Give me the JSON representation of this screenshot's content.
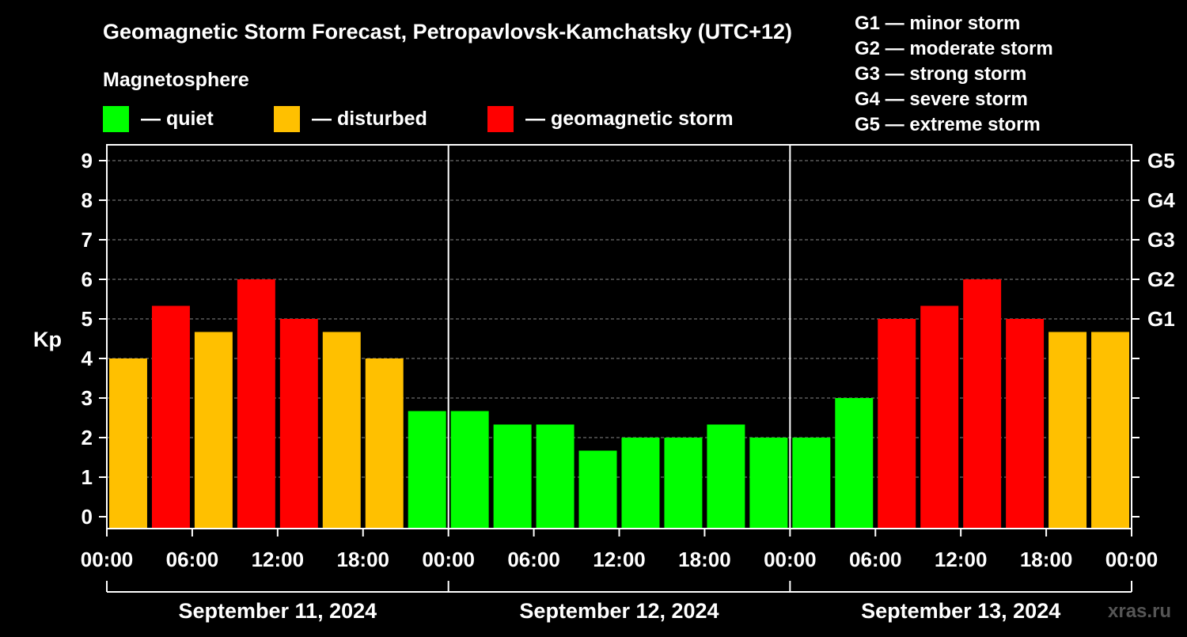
{
  "colors": {
    "quiet": "#00ff00",
    "disturbed": "#ffc000",
    "storm": "#ff0000",
    "background": "#000000",
    "foreground": "#ffffff"
  },
  "legend": {
    "title": "Magnetosphere",
    "items": [
      {
        "label": "— quiet",
        "color": "#00ff00"
      },
      {
        "label": "— disturbed",
        "color": "#ffc000"
      },
      {
        "label": "— geomagnetic storm",
        "color": "#ff0000"
      }
    ]
  },
  "storm_scale": [
    "G1 — minor storm",
    "G2 — moderate storm",
    "G3 — strong storm",
    "G4 — severe storm",
    "G5 — extreme storm"
  ],
  "watermark": "xras.ru",
  "chart_data": {
    "type": "bar",
    "title": "Geomagnetic Storm Forecast, Petropavlovsk-Kamchatsky (UTC+12)",
    "ylabel": "Kp",
    "ylim": [
      -0.3,
      9.4
    ],
    "y_ticks": [
      "0",
      "1",
      "2",
      "3",
      "4",
      "5",
      "6",
      "7",
      "8",
      "9"
    ],
    "y2_ticks": [
      {
        "label": "G1",
        "value": 5
      },
      {
        "label": "G2",
        "value": 6
      },
      {
        "label": "G3",
        "value": 7
      },
      {
        "label": "G4",
        "value": 8
      },
      {
        "label": "G5",
        "value": 9
      }
    ],
    "x_ticks": [
      "00:00",
      "06:00",
      "12:00",
      "18:00",
      "00:00",
      "06:00",
      "12:00",
      "18:00",
      "00:00",
      "06:00",
      "12:00",
      "18:00",
      "00:00"
    ],
    "days": [
      "September 11, 2024",
      "September 12, 2024",
      "September 13, 2024"
    ],
    "interval_hours": 3,
    "grid": "horizontal dashed",
    "values": [
      4.0,
      5.33,
      4.67,
      6.0,
      5.0,
      4.67,
      4.0,
      2.67,
      2.67,
      2.33,
      2.33,
      1.67,
      2.0,
      2.0,
      2.33,
      2.0,
      2.0,
      3.0,
      5.0,
      5.33,
      6.0,
      5.0,
      4.67,
      4.67
    ],
    "levels": [
      "disturbed",
      "storm",
      "disturbed",
      "storm",
      "storm",
      "disturbed",
      "disturbed",
      "quiet",
      "quiet",
      "quiet",
      "quiet",
      "quiet",
      "quiet",
      "quiet",
      "quiet",
      "quiet",
      "quiet",
      "quiet",
      "storm",
      "storm",
      "storm",
      "storm",
      "disturbed",
      "disturbed"
    ]
  }
}
